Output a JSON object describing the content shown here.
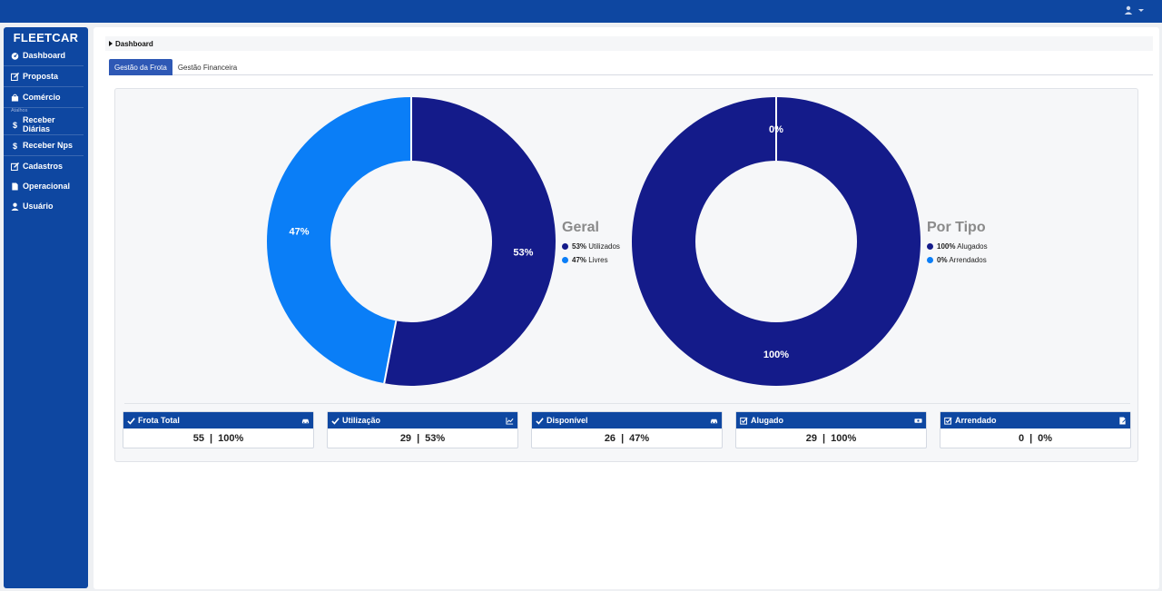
{
  "brand": "FLEETCAR",
  "sidebar": {
    "items": [
      {
        "label": "Dashboard",
        "icon": "dashboard-icon"
      },
      {
        "label": "Proposta",
        "icon": "edit-icon"
      },
      {
        "label": "Comércio",
        "icon": "shopping-bag-icon"
      }
    ],
    "section_label": "Atalhos",
    "shortcuts": [
      {
        "label": "Receber Diárias",
        "icon": "dollar-icon"
      },
      {
        "label": "Receber Nps",
        "icon": "dollar-icon"
      }
    ],
    "more": [
      {
        "label": "Cadastros",
        "icon": "edit-icon"
      },
      {
        "label": "Operacional",
        "icon": "document-icon"
      },
      {
        "label": "Usuário",
        "icon": "user-icon"
      }
    ]
  },
  "breadcrumb": "Dashboard",
  "tabs": [
    {
      "label": "Gestão da Frota",
      "active": true
    },
    {
      "label": "Gestão Financeira",
      "active": false
    }
  ],
  "colors": {
    "dark": "#141b8a",
    "light": "#0a7ef7",
    "header": "#0e47a1"
  },
  "chart_data": [
    {
      "type": "pie",
      "title": "Geral",
      "categories": [
        "Utilizados",
        "Livres"
      ],
      "values": [
        53,
        47
      ],
      "legend": [
        {
          "pct": "53%",
          "label": "Utilizados"
        },
        {
          "pct": "47%",
          "label": "Livres"
        }
      ],
      "labels": [
        "53%",
        "47%"
      ]
    },
    {
      "type": "pie",
      "title": "Por Tipo",
      "categories": [
        "Alugados",
        "Arrendados"
      ],
      "values": [
        100,
        0
      ],
      "legend": [
        {
          "pct": "100%",
          "label": "Alugados"
        },
        {
          "pct": "0%",
          "label": "Arrendados"
        }
      ],
      "labels": [
        "100%",
        "0%"
      ]
    }
  ],
  "stats": [
    {
      "title": "Frota Total",
      "count": "55",
      "pct": "100%",
      "icon": "car-icon"
    },
    {
      "title": "Utilização",
      "count": "29",
      "pct": "53%",
      "icon": "line-chart-icon"
    },
    {
      "title": "Disponível",
      "count": "26",
      "pct": "47%",
      "icon": "car-icon"
    },
    {
      "title": "Alugado",
      "count": "29",
      "pct": "100%",
      "icon": "money-icon"
    },
    {
      "title": "Arrendado",
      "count": "0",
      "pct": "0%",
      "icon": "contract-icon"
    }
  ],
  "separator": "|"
}
